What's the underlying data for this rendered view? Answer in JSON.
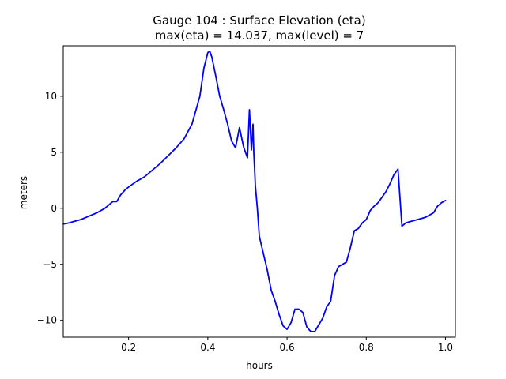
{
  "chart_data": {
    "type": "line",
    "title": "Gauge 104 : Surface Elevation (eta)",
    "subtitle": "max(eta) =  14.037,    max(level) = 7",
    "xlabel": "hours",
    "ylabel": "meters",
    "xlim": [
      0.035,
      1.025
    ],
    "ylim": [
      -11.5,
      14.5
    ],
    "x_ticks": [
      0.2,
      0.4,
      0.6,
      0.8,
      1.0
    ],
    "x_tick_labels": [
      "0.2",
      "0.4",
      "0.6",
      "0.8",
      "1.0"
    ],
    "y_ticks": [
      10,
      5,
      0,
      -5,
      -10
    ],
    "y_tick_labels": [
      "10",
      "5",
      "0",
      "−5",
      "−10"
    ],
    "grid": false,
    "series": [
      {
        "name": "eta",
        "color": "#0000ff",
        "x": [
          0.035,
          0.05,
          0.06,
          0.08,
          0.1,
          0.12,
          0.14,
          0.16,
          0.17,
          0.18,
          0.19,
          0.2,
          0.22,
          0.24,
          0.26,
          0.28,
          0.3,
          0.32,
          0.34,
          0.36,
          0.38,
          0.39,
          0.4,
          0.405,
          0.41,
          0.42,
          0.43,
          0.44,
          0.45,
          0.46,
          0.47,
          0.48,
          0.49,
          0.5,
          0.505,
          0.51,
          0.514,
          0.516,
          0.52,
          0.525,
          0.53,
          0.54,
          0.55,
          0.56,
          0.57,
          0.58,
          0.59,
          0.6,
          0.61,
          0.62,
          0.63,
          0.64,
          0.65,
          0.66,
          0.67,
          0.68,
          0.69,
          0.7,
          0.71,
          0.72,
          0.73,
          0.74,
          0.75,
          0.76,
          0.77,
          0.78,
          0.79,
          0.8,
          0.81,
          0.82,
          0.83,
          0.84,
          0.85,
          0.86,
          0.87,
          0.88,
          0.89,
          0.9,
          0.91,
          0.92,
          0.93,
          0.94,
          0.95,
          0.96,
          0.97,
          0.98,
          0.99,
          1.0
        ],
        "values": [
          -1.4,
          -1.3,
          -1.2,
          -1.0,
          -0.7,
          -0.4,
          0.0,
          0.6,
          0.6,
          1.2,
          1.6,
          1.9,
          2.4,
          2.8,
          3.4,
          4.0,
          4.7,
          5.4,
          6.2,
          7.5,
          10.0,
          12.5,
          13.9,
          14.0,
          13.5,
          11.8,
          10.0,
          8.8,
          7.5,
          6.0,
          5.4,
          7.2,
          5.5,
          4.5,
          8.8,
          5.2,
          7.5,
          5.0,
          2.0,
          0.0,
          -2.5,
          -4.0,
          -5.5,
          -7.3,
          -8.3,
          -9.5,
          -10.5,
          -10.8,
          -10.2,
          -9.0,
          -9.0,
          -9.3,
          -10.6,
          -11.0,
          -11.0,
          -10.4,
          -9.8,
          -8.8,
          -8.3,
          -6.0,
          -5.2,
          -5.0,
          -4.8,
          -3.5,
          -2.0,
          -1.8,
          -1.3,
          -1.0,
          -0.2,
          0.2,
          0.5,
          1.0,
          1.5,
          2.2,
          3.0,
          3.5,
          -1.6,
          -1.3,
          -1.2,
          -1.1,
          -1.0,
          -0.9,
          -0.8,
          -0.6,
          -0.4,
          0.2,
          0.5,
          0.7
        ]
      }
    ]
  }
}
